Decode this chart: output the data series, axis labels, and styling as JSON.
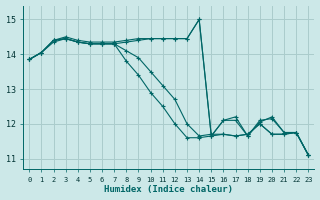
{
  "background_color": "#cce8e8",
  "grid_color": "#aacccc",
  "line_color": "#006666",
  "xlabel": "Humidex (Indice chaleur)",
  "ylim": [
    10.7,
    15.4
  ],
  "xlim": [
    -0.5,
    23.5
  ],
  "yticks": [
    11,
    12,
    13,
    14,
    15
  ],
  "xticks": [
    0,
    1,
    2,
    3,
    4,
    5,
    6,
    7,
    8,
    9,
    10,
    11,
    12,
    13,
    14,
    15,
    16,
    17,
    18,
    19,
    20,
    21,
    22,
    23
  ],
  "lines": [
    {
      "x": [
        0,
        1,
        2,
        3,
        4,
        5,
        6,
        7,
        8,
        9,
        10,
        11,
        12,
        13,
        14,
        15,
        16,
        17,
        18,
        19,
        20,
        21,
        22,
        23
      ],
      "y": [
        13.85,
        14.05,
        14.4,
        14.45,
        14.35,
        14.3,
        14.3,
        14.3,
        14.35,
        14.4,
        14.45,
        14.45,
        14.45,
        14.45,
        15.0,
        11.65,
        12.1,
        12.2,
        11.65,
        12.05,
        12.2,
        11.75,
        11.75,
        11.1
      ]
    },
    {
      "x": [
        0,
        1,
        2,
        3,
        4,
        5,
        6,
        7,
        8,
        9,
        10,
        11,
        12,
        13,
        14,
        15,
        16,
        17,
        18,
        19,
        20,
        21,
        22,
        23
      ],
      "y": [
        13.85,
        14.05,
        14.4,
        14.5,
        14.4,
        14.35,
        14.35,
        14.35,
        14.4,
        14.45,
        14.45,
        14.45,
        14.45,
        14.45,
        15.0,
        11.65,
        12.1,
        12.1,
        11.65,
        12.1,
        12.15,
        11.75,
        11.75,
        11.1
      ]
    },
    {
      "x": [
        0,
        1,
        2,
        3,
        4,
        5,
        6,
        7,
        8,
        9,
        10,
        11,
        12,
        13,
        14,
        15,
        16,
        17,
        18,
        19,
        20,
        21,
        22,
        23
      ],
      "y": [
        13.85,
        14.05,
        14.4,
        14.45,
        14.35,
        14.3,
        14.3,
        14.3,
        14.1,
        13.9,
        13.5,
        13.1,
        12.7,
        12.0,
        11.65,
        11.7,
        11.7,
        11.65,
        11.7,
        12.0,
        11.7,
        11.7,
        11.75,
        11.1
      ]
    },
    {
      "x": [
        0,
        1,
        2,
        3,
        4,
        5,
        6,
        7,
        8,
        9,
        10,
        11,
        12,
        13,
        14,
        15,
        16,
        17,
        18,
        19,
        20,
        21,
        22,
        23
      ],
      "y": [
        13.85,
        14.05,
        14.35,
        14.45,
        14.35,
        14.3,
        14.3,
        14.3,
        13.8,
        13.4,
        12.9,
        12.5,
        12.0,
        11.6,
        11.6,
        11.65,
        11.7,
        11.65,
        11.7,
        12.0,
        11.7,
        11.7,
        11.75,
        11.1
      ]
    }
  ]
}
